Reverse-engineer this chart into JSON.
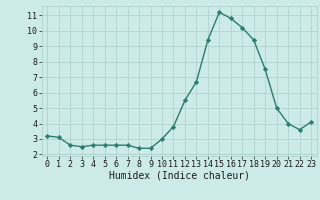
{
  "x": [
    0,
    1,
    2,
    3,
    4,
    5,
    6,
    7,
    8,
    9,
    10,
    11,
    12,
    13,
    14,
    15,
    16,
    17,
    18,
    19,
    20,
    21,
    22,
    23
  ],
  "y": [
    3.2,
    3.1,
    2.6,
    2.5,
    2.6,
    2.6,
    2.6,
    2.6,
    2.4,
    2.4,
    3.0,
    3.8,
    5.5,
    6.7,
    9.4,
    11.2,
    10.8,
    10.2,
    9.4,
    7.5,
    5.0,
    4.0,
    3.6,
    4.1
  ],
  "xlabel": "Humidex (Indice chaleur)",
  "xlim": [
    -0.5,
    23.5
  ],
  "ylim": [
    1.9,
    11.6
  ],
  "yticks": [
    2,
    3,
    4,
    5,
    6,
    7,
    8,
    9,
    10,
    11
  ],
  "xticks": [
    0,
    1,
    2,
    3,
    4,
    5,
    6,
    7,
    8,
    9,
    10,
    11,
    12,
    13,
    14,
    15,
    16,
    17,
    18,
    19,
    20,
    21,
    22,
    23
  ],
  "line_color": "#2d7d6e",
  "marker_color": "#2d7d6e",
  "bg_color": "#cceae8",
  "grid_color": "#aad0cc",
  "font_color": "#1a1a1a",
  "font_family": "monospace",
  "tick_fontsize": 6.0,
  "xlabel_fontsize": 7.0,
  "linewidth": 1.0,
  "markersize": 2.2
}
